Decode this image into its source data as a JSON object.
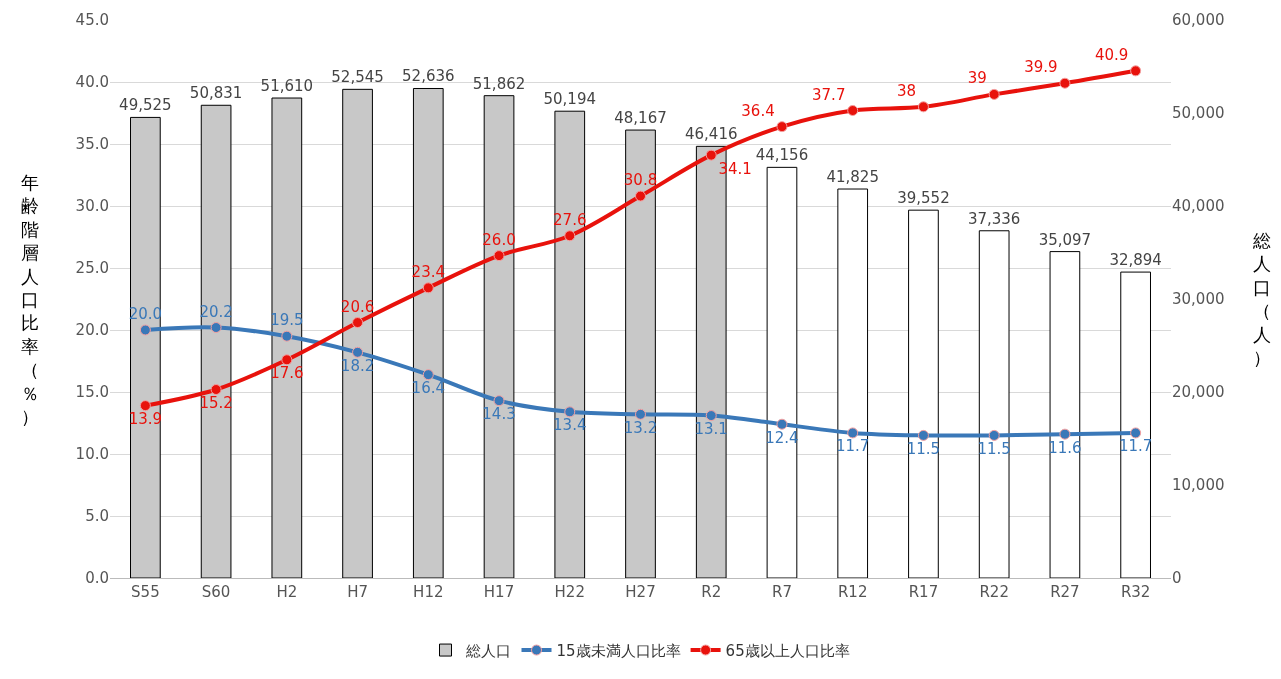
{
  "chart_data": {
    "type": "bar",
    "categories": [
      "S55",
      "S60",
      "H2",
      "H7",
      "H12",
      "H17",
      "H22",
      "H27",
      "R2",
      "R7",
      "R12",
      "R17",
      "R22",
      "R27",
      "R32"
    ],
    "ylabel": "年齢階層人口比率（％）",
    "y2label": "総人口（人）",
    "ylim": [
      0,
      45
    ],
    "yticks": [
      {
        "value": 0,
        "label": "0.0"
      },
      {
        "value": 5,
        "label": "5.0"
      },
      {
        "value": 10,
        "label": "10.0"
      },
      {
        "value": 15,
        "label": "15.0"
      },
      {
        "value": 20,
        "label": "20.0"
      },
      {
        "value": 25,
        "label": "25.0"
      },
      {
        "value": 30,
        "label": "30.0"
      },
      {
        "value": 35,
        "label": "35.0"
      },
      {
        "value": 40,
        "label": "40.0"
      },
      {
        "value": 45,
        "label": "45.0"
      }
    ],
    "y2lim": [
      0,
      60000
    ],
    "y2ticks": [
      0,
      {
        "value": 10000,
        "label": "10,000"
      },
      {
        "value": 20000,
        "label": "20,000"
      },
      {
        "value": 30000,
        "label": "30,000"
      },
      {
        "value": 40000,
        "label": "40,000"
      },
      {
        "value": 50000,
        "label": "50,000"
      },
      {
        "value": 60000,
        "label": "60,000"
      }
    ],
    "grid": "y",
    "legend": "bottom",
    "marker": "circle",
    "series": [
      {
        "name": "総人口",
        "axis": "y2",
        "colors": [
          "#c8c8c8",
          "#c8c8c8",
          "#c8c8c8",
          "#c8c8c8",
          "#c8c8c8",
          "#c8c8c8",
          "#c8c8c8",
          "#c8c8c8",
          "#c8c8c8",
          "#ffffff",
          "#ffffff",
          "#ffffff",
          "#ffffff",
          "#ffffff",
          "#ffffff"
        ],
        "values": [
          49525,
          50831,
          51610,
          52545,
          52636,
          51862,
          50194,
          48167,
          46416,
          44156,
          41825,
          39552,
          37336,
          35097,
          32894
        ],
        "value_labels": [
          "49,525",
          "50,831",
          "51,610",
          "52,545",
          "52,636",
          "51,862",
          "50,194",
          "48,167",
          "46,416",
          "44,156",
          "41,825",
          "39,552",
          "37,336",
          "35,097",
          "32,894"
        ]
      },
      {
        "name": "15歳未満人口比率",
        "type": "line",
        "color": "#3a78b8",
        "values": [
          20.0,
          20.2,
          19.5,
          18.2,
          16.4,
          14.3,
          13.4,
          13.2,
          13.1,
          12.4,
          11.7,
          11.5,
          11.5,
          11.6,
          11.7
        ],
        "value_labels": [
          "20.0",
          "20.2",
          "19.5",
          "18.2",
          "16.4",
          "14.3",
          "13.4",
          "13.2",
          "13.1",
          "12.4",
          "11.7",
          "11.5",
          "11.5",
          "11.6",
          "11.7"
        ]
      },
      {
        "name": "65歳以上人口比率",
        "type": "line",
        "color": "#e8120c",
        "values": [
          13.9,
          15.2,
          17.6,
          20.6,
          23.4,
          26.0,
          27.6,
          30.8,
          34.1,
          36.4,
          37.7,
          38,
          39,
          39.9,
          40.9
        ],
        "value_labels": [
          "13.9",
          "15.2",
          "17.6",
          "20.6",
          "23.4",
          "26.0",
          "27.6",
          "30.8",
          "34.1",
          "36.4",
          "37.7",
          "38",
          "39",
          "39.9",
          "40.9"
        ]
      }
    ]
  }
}
